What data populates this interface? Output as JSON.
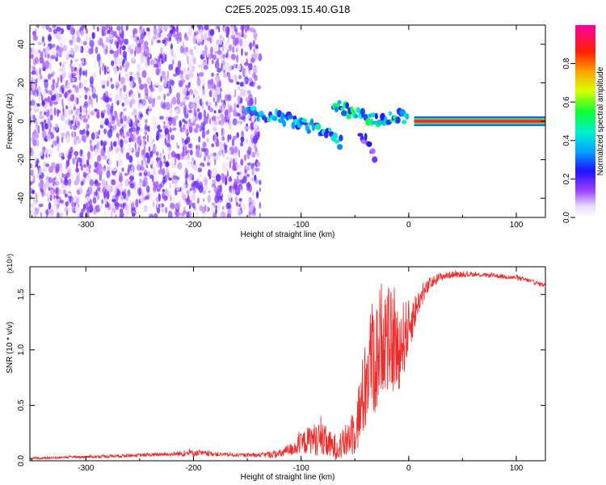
{
  "page_title": "C2E5.2025.093.15.40.G18",
  "chart_data": [
    {
      "type": "heatmap",
      "title": "C2E5.2025.093.15.40.G18",
      "xlabel": "Height of straight line (km)",
      "ylabel": "Frequency (Hz)",
      "xlim": [
        -352,
        127
      ],
      "ylim": [
        -50,
        50
      ],
      "xticks": [
        -300,
        -200,
        -100,
        0,
        100
      ],
      "yticks": [
        -40,
        -20,
        0,
        20,
        40
      ],
      "colorbar": {
        "label": "Normalized spectral amplitude",
        "range": [
          0,
          1
        ],
        "ticks": [
          "0.0",
          "0.2",
          "0.4",
          "0.6",
          "0.8"
        ],
        "tick_values": [
          0,
          0.2,
          0.4,
          0.6,
          0.8
        ]
      },
      "regions": [
        {
          "name": "noise",
          "x_from": -352,
          "x_to": -138,
          "freq_from": -50,
          "freq_to": 50,
          "amplitude": 0.1
        },
        {
          "name": "signal",
          "points": [
            [
              -150,
              5
            ],
            [
              -140,
              4
            ],
            [
              -130,
              3
            ],
            [
              -120,
              2
            ],
            [
              -110,
              1
            ],
            [
              -100,
              -1
            ],
            [
              -90,
              -3
            ],
            [
              -80,
              -4
            ],
            [
              -75,
              -6
            ],
            [
              -70,
              -9
            ],
            [
              -65,
              -11
            ],
            [
              -62,
              -12
            ]
          ],
          "amplitude": 0.35
        },
        {
          "name": "branch",
          "points": [
            [
              -70,
              10
            ],
            [
              -60,
              7
            ],
            [
              -50,
              4
            ],
            [
              -40,
              2
            ],
            [
              -30,
              0
            ],
            [
              -20,
              1
            ],
            [
              -10,
              3
            ],
            [
              0,
              2
            ]
          ],
          "amplitude": 0.4
        },
        {
          "name": "tail",
          "points": [
            [
              -45,
              -6
            ],
            [
              -40,
              -10
            ],
            [
              -35,
              -14
            ],
            [
              -30,
              -20
            ]
          ],
          "amplitude": 0.2
        },
        {
          "name": "carrier",
          "x_from": 5,
          "x_to": 127,
          "freq": 0,
          "amplitude": 1.0
        }
      ]
    },
    {
      "type": "line",
      "xlabel": "Height of straight line (km)",
      "ylabel": "SNR (10 * v/v)",
      "y_multiplier": "(x10⁴)",
      "xlim": [
        -352,
        127
      ],
      "ylim": [
        0,
        1.75
      ],
      "xticks": [
        -300,
        -200,
        -100,
        0,
        100
      ],
      "yticks": [
        0.0,
        0.5,
        1.0,
        1.5
      ],
      "ytick_labels": [
        "0.0",
        "0.5",
        "1.0",
        "1.5"
      ],
      "series": [
        {
          "color": "#ee2b2b",
          "x": [
            -352,
            -320,
            -280,
            -250,
            -220,
            -200,
            -180,
            -160,
            -140,
            -120,
            -110,
            -100,
            -90,
            -80,
            -70,
            -60,
            -50,
            -45,
            -40,
            -35,
            -30,
            -25,
            -20,
            -15,
            -10,
            -5,
            0,
            10,
            20,
            30,
            40,
            60,
            80,
            100,
            110,
            120,
            127
          ],
          "y": [
            0.02,
            0.03,
            0.04,
            0.05,
            0.06,
            0.07,
            0.06,
            0.05,
            0.05,
            0.06,
            0.1,
            0.15,
            0.2,
            0.18,
            0.12,
            0.15,
            0.3,
            0.45,
            0.7,
            0.95,
            0.9,
            1.15,
            1.1,
            1.05,
            1.0,
            1.1,
            1.2,
            1.45,
            1.6,
            1.66,
            1.68,
            1.68,
            1.67,
            1.65,
            1.63,
            1.6,
            1.58
          ],
          "noise_amplitude": [
            0.01,
            0.01,
            0.015,
            0.015,
            0.02,
            0.03,
            0.02,
            0.015,
            0.02,
            0.04,
            0.06,
            0.1,
            0.14,
            0.16,
            0.12,
            0.14,
            0.25,
            0.35,
            0.45,
            0.5,
            0.55,
            0.5,
            0.5,
            0.45,
            0.4,
            0.35,
            0.25,
            0.1,
            0.06,
            0.04,
            0.03,
            0.02,
            0.02,
            0.02,
            0.02,
            0.02,
            0.02
          ]
        }
      ]
    }
  ]
}
